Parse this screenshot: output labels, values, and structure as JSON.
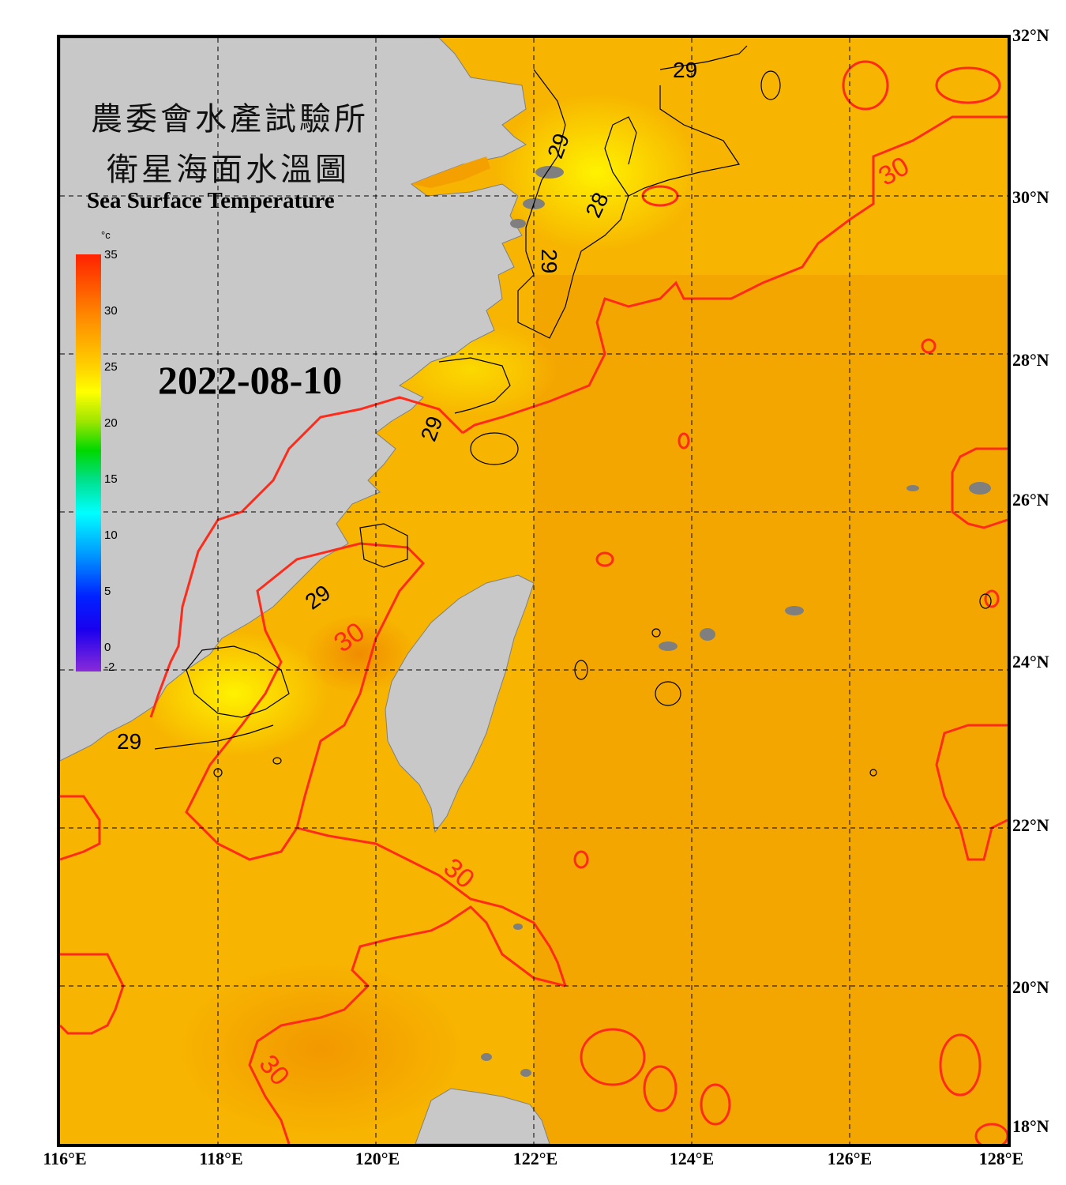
{
  "titles": {
    "zh_line1": "農委會水產試驗所",
    "zh_line2": "衛星海面水溫圖",
    "en": "Sea Surface Temperature"
  },
  "date": "2022-08-10",
  "colorbar": {
    "unit": "°c",
    "ticks": [
      "35",
      "30",
      "25",
      "20",
      "15",
      "10",
      "5",
      "0",
      "-2"
    ],
    "range": [
      -2,
      35
    ]
  },
  "axes": {
    "lat_labels": [
      "32°N",
      "30°N",
      "28°N",
      "26°N",
      "24°N",
      "22°N",
      "20°N",
      "18°N"
    ],
    "lon_labels": [
      "116°E",
      "118°E",
      "120°E",
      "122°E",
      "124°E",
      "126°E",
      "128°E"
    ]
  },
  "contours": {
    "labels": [
      "29",
      "29",
      "28",
      "29",
      "29",
      "29",
      "29",
      "30",
      "30",
      "30",
      "30"
    ]
  },
  "colors": {
    "land": "#c8c8c8",
    "sea_warm": "#f6a800",
    "sea_cool": "#ffe800",
    "contour_30": "#ff2a1a",
    "contour_29": "#000000",
    "grid": "#000000"
  }
}
